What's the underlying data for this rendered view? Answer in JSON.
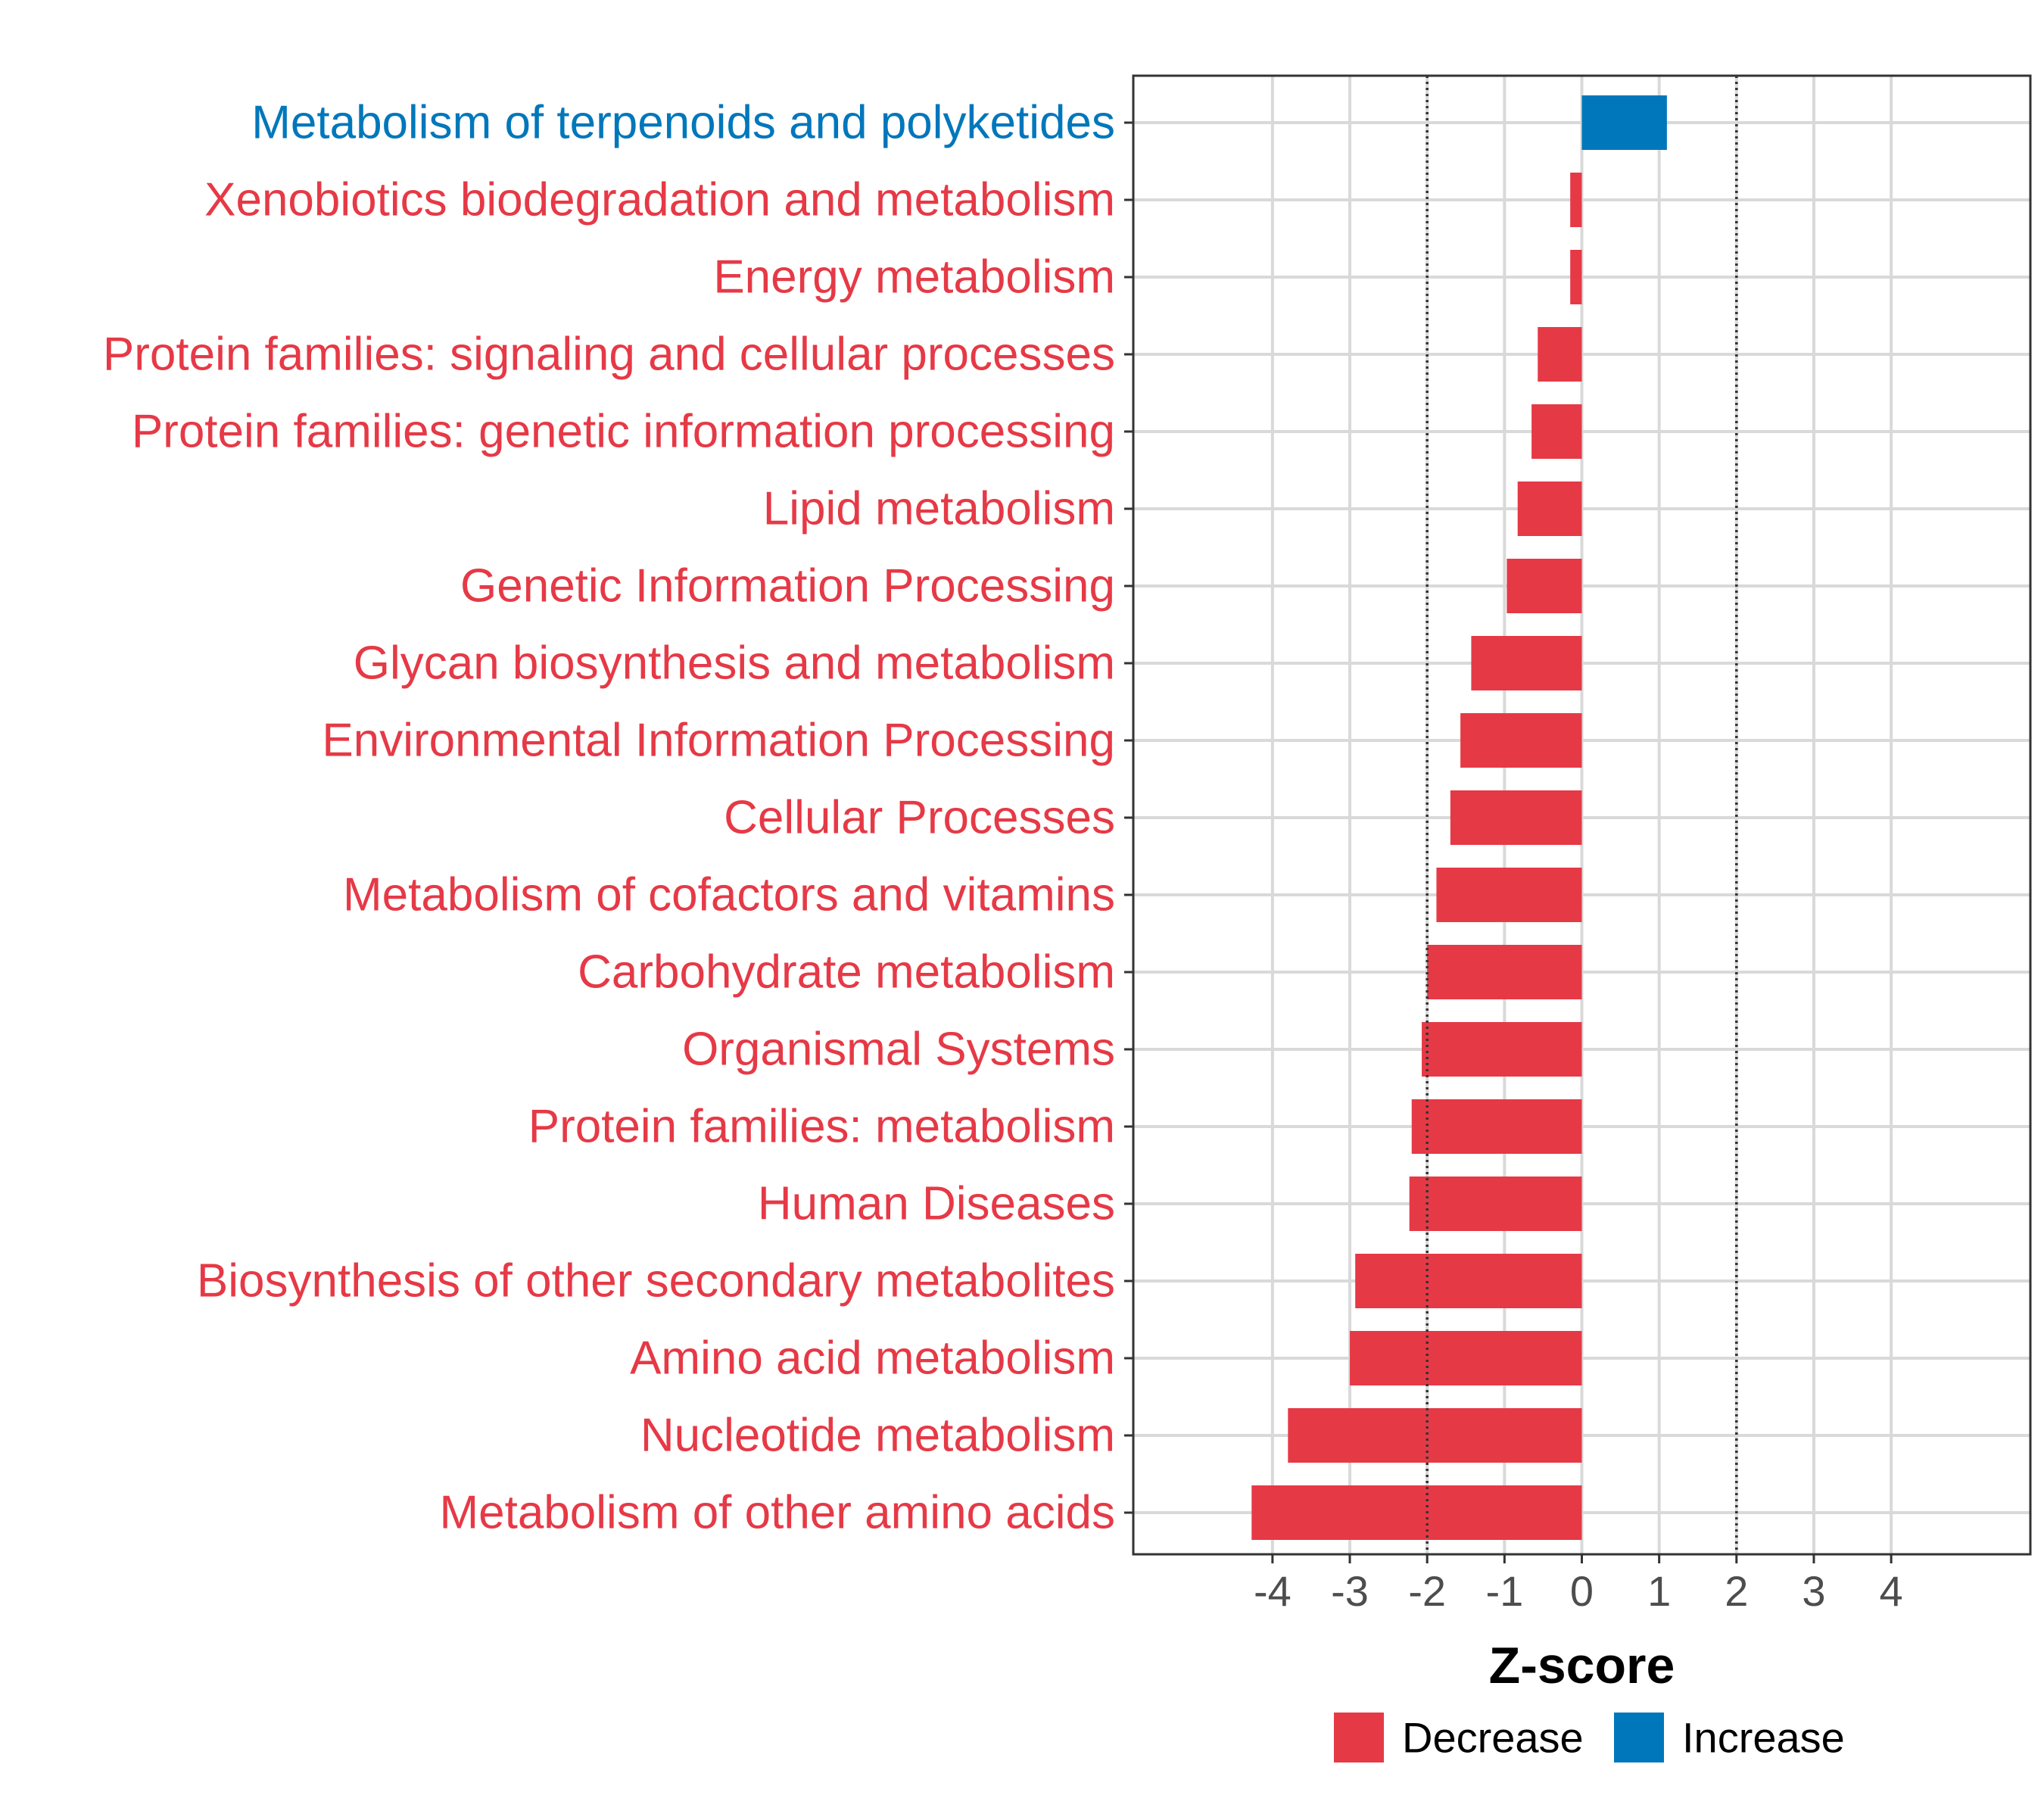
{
  "chart_data": {
    "type": "bar",
    "orientation": "horizontal",
    "xlabel": "Z-score",
    "xlim": [
      -5.8,
      5.8
    ],
    "xticks": [
      -4,
      -3,
      -2,
      -1,
      0,
      1,
      2,
      3,
      4
    ],
    "xtick_labels": [
      "-4",
      "-3",
      "-2",
      "-1",
      "0",
      "1",
      "2",
      "3",
      "4"
    ],
    "reference_lines": [
      -2,
      2
    ],
    "grid": true,
    "legend_position": "bottom",
    "colors": {
      "Decrease": "#e63946",
      "Increase": "#0077bb"
    },
    "legend": [
      {
        "label": "Decrease",
        "color": "#e63946"
      },
      {
        "label": "Increase",
        "color": "#0077bb"
      }
    ],
    "categories": [
      "Metabolism of terpenoids and polyketides",
      "Xenobiotics biodegradation and metabolism",
      "Energy metabolism",
      "Protein families: signaling and cellular processes",
      "Protein families: genetic information processing",
      "Lipid metabolism",
      "Genetic Information Processing",
      "Glycan biosynthesis and metabolism",
      "Environmental Information Processing",
      "Cellular Processes",
      "Metabolism of cofactors and vitamins",
      "Carbohydrate metabolism",
      "Organismal Systems",
      "Protein families: metabolism",
      "Human Diseases",
      "Biosynthesis of other secondary metabolites",
      "Amino acid metabolism",
      "Nucleotide metabolism",
      "Metabolism of other amino acids"
    ],
    "values": [
      1.1,
      -0.15,
      -0.15,
      -0.57,
      -0.65,
      -0.83,
      -0.97,
      -1.43,
      -1.57,
      -1.7,
      -1.88,
      -2.0,
      -2.07,
      -2.2,
      -2.23,
      -2.93,
      -3.0,
      -3.8,
      -4.27
    ],
    "groups": [
      "Increase",
      "Decrease",
      "Decrease",
      "Decrease",
      "Decrease",
      "Decrease",
      "Decrease",
      "Decrease",
      "Decrease",
      "Decrease",
      "Decrease",
      "Decrease",
      "Decrease",
      "Decrease",
      "Decrease",
      "Decrease",
      "Decrease",
      "Decrease",
      "Decrease"
    ]
  }
}
